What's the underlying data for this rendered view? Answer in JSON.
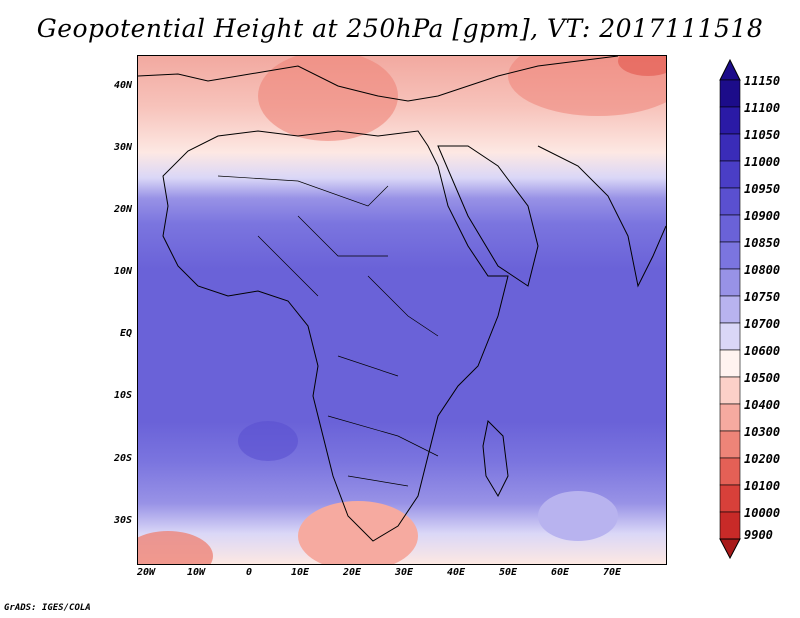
{
  "title": "Geopotential Height at 250hPa [gpm], VT: 2017111518",
  "credit": "GrADS: IGES/COLA",
  "lat_labels": [
    "40N",
    "30N",
    "20N",
    "10N",
    "EQ",
    "10S",
    "20S",
    "30S"
  ],
  "lon_labels": [
    "20W",
    "10W",
    "0",
    "10E",
    "20E",
    "30E",
    "40E",
    "50E",
    "60E",
    "70E"
  ],
  "colorbar": {
    "labels": [
      "11150",
      "11100",
      "11050",
      "11000",
      "10950",
      "10900",
      "10850",
      "10800",
      "10750",
      "10700",
      "10600",
      "10500",
      "10400",
      "10300",
      "10200",
      "10100",
      "10000",
      "9900"
    ],
    "colors": [
      "#1c0c8a",
      "#2a1aa6",
      "#3a2cb8",
      "#4a3ec6",
      "#5a50d0",
      "#6a62d8",
      "#7b75df",
      "#9892e6",
      "#b8b3ef",
      "#dad7f7",
      "#fff3f0",
      "#fcd0c8",
      "#f6aaa0",
      "#ee8478",
      "#e46056",
      "#d8403a",
      "#c82a28",
      "#a81a1a"
    ]
  }
}
